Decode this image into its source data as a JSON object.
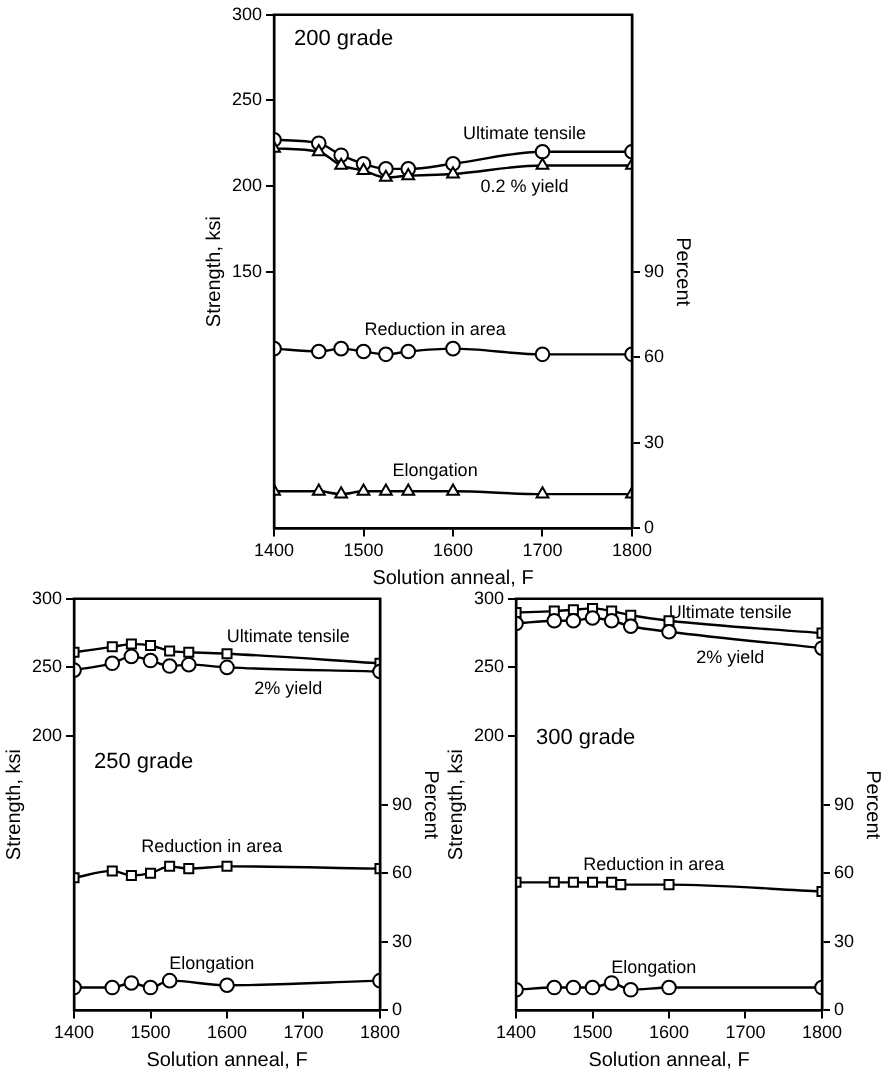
{
  "chart_data": [
    {
      "type": "line",
      "title": "200 grade",
      "xlabel": "Solution anneal, F",
      "ylabel": "Strength, ksi",
      "y2label": "Percent",
      "xlim": [
        1400,
        1800
      ],
      "xticks": [
        1400,
        1500,
        1600,
        1700,
        1800
      ],
      "ylim": [
        0,
        300
      ],
      "yticks": [
        150,
        200,
        250,
        300
      ],
      "y2lim": [
        0,
        180
      ],
      "y2ticks": [
        0,
        30,
        60,
        90
      ],
      "grid": false,
      "legend": false,
      "line_style": "solid",
      "series": [
        {
          "name": "Ultimate tensile",
          "color": "#000000",
          "marker": "circle",
          "x": [
            1400,
            1450,
            1475,
            1500,
            1525,
            1550,
            1600,
            1700,
            1800
          ],
          "values": [
            227,
            225,
            218,
            213,
            210,
            210,
            213,
            220,
            220
          ]
        },
        {
          "name": "0.2 % yield",
          "color": "#000000",
          "marker": "triangle",
          "x": [
            1400,
            1450,
            1475,
            1500,
            1525,
            1550,
            1600,
            1700,
            1800
          ],
          "values": [
            222,
            220,
            212,
            209,
            205,
            206,
            207,
            212,
            212
          ]
        },
        {
          "name": "Reduction in area",
          "color": "#000000",
          "marker": "circle",
          "axis": "y2",
          "x": [
            1400,
            1450,
            1475,
            1500,
            1525,
            1550,
            1600,
            1700,
            1800
          ],
          "values": [
            63,
            62,
            63,
            62,
            61,
            62,
            63,
            61,
            61
          ]
        },
        {
          "name": "Elongation",
          "color": "#000000",
          "marker": "triangle",
          "axis": "y2",
          "x": [
            1400,
            1450,
            1475,
            1500,
            1525,
            1550,
            1600,
            1700,
            1800
          ],
          "values": [
            13,
            13,
            12,
            13,
            13,
            13,
            13,
            12,
            12
          ]
        }
      ]
    },
    {
      "type": "line",
      "title": "250 grade",
      "xlabel": "Solution anneal, F",
      "ylabel": "Strength, ksi",
      "y2label": "Percent",
      "xlim": [
        1400,
        1800
      ],
      "xticks": [
        1400,
        1500,
        1600,
        1700,
        1800
      ],
      "ylim": [
        0,
        300
      ],
      "yticks": [
        200,
        250,
        300
      ],
      "y2lim": [
        0,
        180
      ],
      "y2ticks": [
        0,
        30,
        60,
        90
      ],
      "grid": false,
      "legend": false,
      "line_style": "solid",
      "series": [
        {
          "name": "Ultimate tensile",
          "color": "#000000",
          "marker": "square",
          "x": [
            1400,
            1450,
            1475,
            1500,
            1525,
            1550,
            1600,
            1800
          ],
          "values": [
            261,
            265,
            267,
            266,
            262,
            261,
            260,
            253
          ]
        },
        {
          "name": "2% yield",
          "color": "#000000",
          "marker": "circle",
          "x": [
            1400,
            1450,
            1475,
            1500,
            1525,
            1550,
            1600,
            1800
          ],
          "values": [
            248,
            253,
            258,
            255,
            251,
            252,
            250,
            247
          ]
        },
        {
          "name": "Reduction in area",
          "color": "#000000",
          "marker": "square",
          "axis": "y2",
          "x": [
            1400,
            1450,
            1475,
            1500,
            1525,
            1550,
            1600,
            1800
          ],
          "values": [
            58,
            61,
            59,
            60,
            63,
            62,
            63,
            62
          ]
        },
        {
          "name": "Elongation",
          "color": "#000000",
          "marker": "circle",
          "axis": "y2",
          "x": [
            1400,
            1450,
            1475,
            1500,
            1525,
            1600,
            1800
          ],
          "values": [
            10,
            10,
            12,
            10,
            13,
            11,
            13
          ]
        }
      ]
    },
    {
      "type": "line",
      "title": "300 grade",
      "xlabel": "Solution anneal, F",
      "ylabel": "Strength, ksi",
      "y2label": "Percent",
      "xlim": [
        1400,
        1800
      ],
      "xticks": [
        1400,
        1500,
        1600,
        1700,
        1800
      ],
      "ylim": [
        0,
        300
      ],
      "yticks": [
        200,
        250,
        300
      ],
      "y2lim": [
        0,
        180
      ],
      "y2ticks": [
        0,
        30,
        60,
        90
      ],
      "grid": false,
      "legend": false,
      "line_style": "solid",
      "series": [
        {
          "name": "Ultimate tensile",
          "color": "#000000",
          "marker": "square",
          "x": [
            1400,
            1450,
            1475,
            1500,
            1525,
            1550,
            1600,
            1800
          ],
          "values": [
            290,
            291,
            292,
            293,
            291,
            288,
            284,
            275
          ]
        },
        {
          "name": "2% yield",
          "color": "#000000",
          "marker": "circle",
          "x": [
            1400,
            1450,
            1475,
            1500,
            1525,
            1550,
            1600,
            1800
          ],
          "values": [
            282,
            284,
            284,
            286,
            284,
            280,
            276,
            264
          ]
        },
        {
          "name": "Reduction in area",
          "color": "#000000",
          "marker": "square",
          "axis": "y2",
          "x": [
            1400,
            1450,
            1475,
            1500,
            1525,
            1537,
            1600,
            1800
          ],
          "values": [
            56,
            56,
            56,
            56,
            56,
            55,
            55,
            52
          ]
        },
        {
          "name": "Elongation",
          "color": "#000000",
          "marker": "circle",
          "axis": "y2",
          "x": [
            1400,
            1450,
            1475,
            1500,
            1525,
            1550,
            1600,
            1800
          ],
          "values": [
            9,
            10,
            10,
            10,
            12,
            9,
            10,
            10
          ]
        }
      ]
    }
  ]
}
